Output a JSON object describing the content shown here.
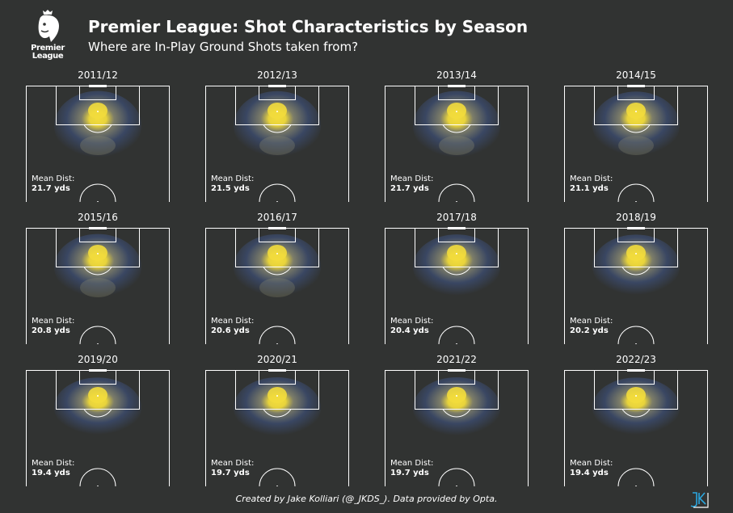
{
  "header": {
    "logo_text_line1": "Premier",
    "logo_text_line2": "League",
    "title": "Premier League: Shot Characteristics by Season",
    "subtitle": "Where are In-Play Ground Shots taken from?"
  },
  "labels": {
    "mean_dist": "Mean Dist:"
  },
  "chart_data": {
    "type": "heatmap",
    "metric": "Mean Dist",
    "unit": "yds",
    "panels": [
      {
        "season": "2011/12",
        "mean_dist": 21.7,
        "mean_dist_text": "21.7 yds"
      },
      {
        "season": "2012/13",
        "mean_dist": 21.5,
        "mean_dist_text": "21.5 yds"
      },
      {
        "season": "2013/14",
        "mean_dist": 21.7,
        "mean_dist_text": "21.7 yds"
      },
      {
        "season": "2014/15",
        "mean_dist": 21.1,
        "mean_dist_text": "21.1 yds"
      },
      {
        "season": "2015/16",
        "mean_dist": 20.8,
        "mean_dist_text": "20.8 yds"
      },
      {
        "season": "2016/17",
        "mean_dist": 20.6,
        "mean_dist_text": "20.6 yds"
      },
      {
        "season": "2017/18",
        "mean_dist": 20.4,
        "mean_dist_text": "20.4 yds"
      },
      {
        "season": "2018/19",
        "mean_dist": 20.2,
        "mean_dist_text": "20.2 yds"
      },
      {
        "season": "2019/20",
        "mean_dist": 19.4,
        "mean_dist_text": "19.4 yds"
      },
      {
        "season": "2020/21",
        "mean_dist": 19.7,
        "mean_dist_text": "19.7 yds"
      },
      {
        "season": "2021/22",
        "mean_dist": 19.7,
        "mean_dist_text": "19.7 yds"
      },
      {
        "season": "2022/23",
        "mean_dist": 19.4,
        "mean_dist_text": "19.4 yds"
      }
    ],
    "colors": {
      "background": "#313332",
      "lines": "#ffffff",
      "density_low": "#3b4a6b",
      "density_mid": "#8a8a72",
      "density_high": "#f2dc3c"
    }
  },
  "footer": {
    "credit": "Created by Jake Kolliari (@_JKDS_). Data provided by Opta.",
    "monogram": "JK"
  }
}
